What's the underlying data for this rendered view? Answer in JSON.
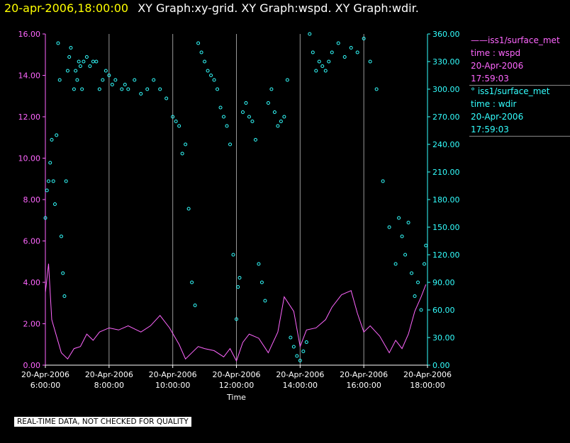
{
  "title": {
    "datetime": "20-apr-2006,18:00:00",
    "text": "XY Graph:xy-grid.  XY Graph:wspd.  XY Graph:wdir."
  },
  "legend": [
    {
      "prefix": "——",
      "name": "iss1/surface_met",
      "var": "time : wspd",
      "date": "20-Apr-2006",
      "time": "17:59:03",
      "color": "#ff66ff"
    },
    {
      "prefix": "°",
      "name": "iss1/surface_met",
      "var": "time : wdir",
      "date": "20-Apr-2006",
      "time": "17:59:03",
      "color": "#33ffff"
    }
  ],
  "note": "REAL-TIME DATA, NOT CHECKED FOR QUALITY",
  "chart_data": {
    "type": "scatter",
    "xlabel": "Time",
    "x_ticks": [
      "20-Apr-2006 6:00:00",
      "20-Apr-2006 8:00:00",
      "20-Apr-2006 10:00:00",
      "20-Apr-2006 12:00:00",
      "20-Apr-2006 14:00:00",
      "20-Apr-2006 16:00:00",
      "20-Apr-2006 18:00:00"
    ],
    "xlim": [
      "2006-04-20 06:00",
      "2006-04-20 18:00"
    ],
    "grid_x_hours": [
      6,
      8,
      10,
      12,
      14,
      16,
      18
    ],
    "y_left": {
      "ylim": [
        0,
        16
      ],
      "ticks": [
        "0.00",
        "2.00",
        "4.00",
        "6.00",
        "8.00",
        "10.00",
        "12.00",
        "14.00",
        "16.00"
      ],
      "color": "#ff66ff"
    },
    "y_right": {
      "ylim": [
        0,
        360
      ],
      "ticks": [
        "0.00",
        "30.00",
        "60.00",
        "90.00",
        "120.00",
        "150.00",
        "180.00",
        "210.00",
        "240.00",
        "270.00",
        "300.00",
        "330.00",
        "360.00"
      ],
      "color": "#33ffff"
    },
    "series": [
      {
        "name": "iss1/surface_met time : wspd",
        "axis": "left",
        "style": "line",
        "color": "#ff66ff",
        "x_hours": [
          6.0,
          6.1,
          6.2,
          6.35,
          6.5,
          6.7,
          6.9,
          7.1,
          7.3,
          7.5,
          7.7,
          8.0,
          8.3,
          8.6,
          9.0,
          9.3,
          9.6,
          9.9,
          10.2,
          10.4,
          10.6,
          10.8,
          11.0,
          11.3,
          11.6,
          11.8,
          12.0,
          12.2,
          12.4,
          12.7,
          13.0,
          13.3,
          13.5,
          13.8,
          14.0,
          14.2,
          14.5,
          14.8,
          15.0,
          15.3,
          15.6,
          15.8,
          16.0,
          16.2,
          16.5,
          16.8,
          17.0,
          17.2,
          17.4,
          17.6,
          17.8,
          17.95
        ],
        "values": [
          3.5,
          4.9,
          2.2,
          1.4,
          0.6,
          0.3,
          0.8,
          0.9,
          1.5,
          1.2,
          1.6,
          1.8,
          1.7,
          1.9,
          1.6,
          1.9,
          2.4,
          1.8,
          1.0,
          0.3,
          0.6,
          0.9,
          0.8,
          0.7,
          0.4,
          0.8,
          0.2,
          1.1,
          1.5,
          1.3,
          0.6,
          1.6,
          3.3,
          2.6,
          0.9,
          1.7,
          1.8,
          2.2,
          2.8,
          3.4,
          3.6,
          2.5,
          1.6,
          1.9,
          1.4,
          0.6,
          1.2,
          0.8,
          1.5,
          2.6,
          3.3,
          3.9
        ]
      },
      {
        "name": "iss1/surface_met time : wdir",
        "axis": "right",
        "style": "points",
        "color": "#33ffff",
        "x_hours": [
          6.0,
          6.05,
          6.1,
          6.15,
          6.2,
          6.25,
          6.3,
          6.35,
          6.4,
          6.45,
          6.5,
          6.55,
          6.6,
          6.65,
          6.7,
          6.75,
          6.8,
          6.9,
          6.95,
          7.0,
          7.05,
          7.1,
          7.15,
          7.2,
          7.3,
          7.4,
          7.5,
          7.6,
          7.7,
          7.8,
          7.9,
          8.0,
          8.1,
          8.2,
          8.4,
          8.5,
          8.6,
          8.8,
          9.0,
          9.2,
          9.4,
          9.6,
          9.8,
          10.0,
          10.1,
          10.2,
          10.3,
          10.4,
          10.5,
          10.6,
          10.7,
          10.8,
          10.9,
          11.0,
          11.1,
          11.2,
          11.3,
          11.4,
          11.5,
          11.6,
          11.7,
          11.8,
          11.9,
          12.0,
          12.05,
          12.1,
          12.2,
          12.3,
          12.4,
          12.5,
          12.6,
          12.7,
          12.8,
          12.9,
          13.0,
          13.1,
          13.2,
          13.3,
          13.4,
          13.5,
          13.6,
          13.7,
          13.8,
          13.9,
          14.0,
          14.1,
          14.2,
          14.3,
          14.4,
          14.5,
          14.6,
          14.7,
          14.8,
          14.9,
          15.0,
          15.2,
          15.4,
          15.6,
          15.8,
          16.0,
          16.2,
          16.4,
          16.6,
          16.8,
          17.0,
          17.1,
          17.2,
          17.3,
          17.4,
          17.5,
          17.6,
          17.7,
          17.8,
          17.9,
          17.95
        ],
        "values": [
          160,
          190,
          200,
          220,
          245,
          200,
          175,
          250,
          350,
          310,
          140,
          100,
          75,
          200,
          320,
          335,
          345,
          300,
          320,
          310,
          330,
          325,
          300,
          330,
          335,
          325,
          330,
          330,
          300,
          310,
          320,
          315,
          305,
          310,
          300,
          305,
          300,
          310,
          295,
          300,
          310,
          300,
          290,
          270,
          265,
          260,
          230,
          240,
          170,
          90,
          65,
          350,
          340,
          330,
          320,
          315,
          310,
          300,
          280,
          270,
          260,
          240,
          120,
          50,
          85,
          95,
          275,
          285,
          270,
          265,
          245,
          110,
          90,
          70,
          285,
          300,
          275,
          260,
          265,
          270,
          310,
          30,
          20,
          10,
          5,
          15,
          25,
          360,
          340,
          320,
          330,
          325,
          320,
          330,
          340,
          350,
          335,
          345,
          340,
          355,
          330,
          300,
          200,
          150,
          110,
          160,
          140,
          120,
          155,
          100,
          75,
          90,
          60,
          110,
          130
        ]
      }
    ]
  }
}
